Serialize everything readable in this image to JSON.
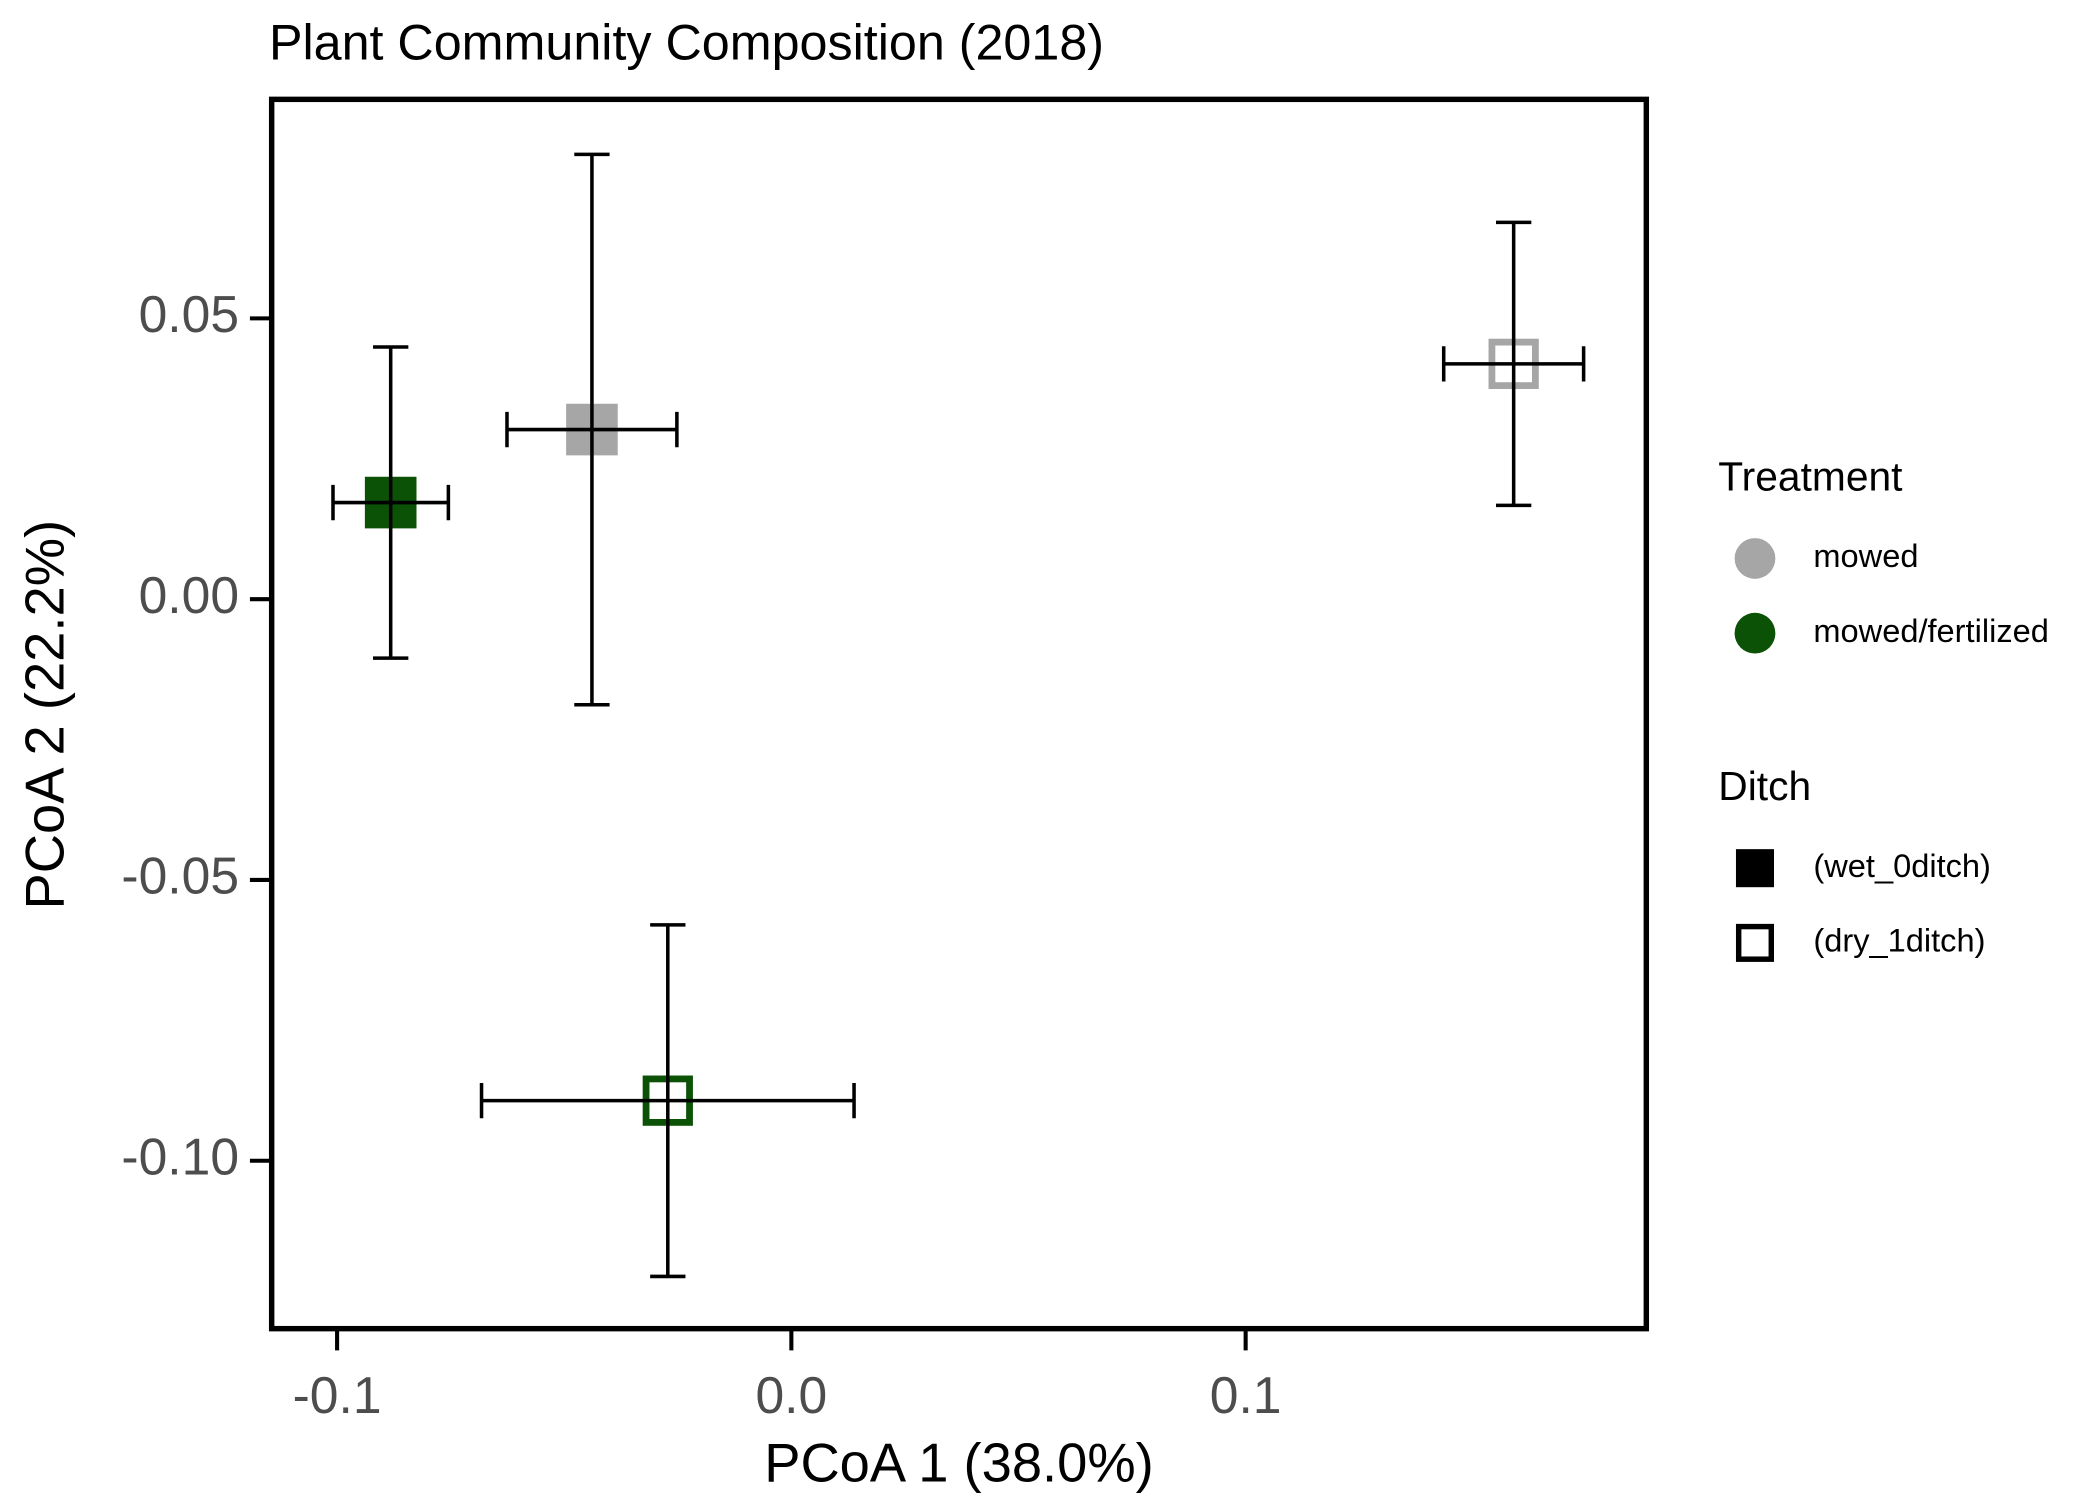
{
  "chart_data": {
    "type": "scatter",
    "title": "Plant Community Composition (2018)",
    "x_label": "PCoA 1 (38.0%)",
    "y_label": "PCoA 2 (22.2%)",
    "xlim": [
      -0.1144,
      0.1882
    ],
    "ylim": [
      -0.1299,
      0.089
    ],
    "xticks": [
      -0.1,
      {
        "value": 0,
        "label": "0.0"
      },
      0.1
    ],
    "yticks": [
      {
        "value": -0.1,
        "label": "-0.10"
      },
      -0.05,
      {
        "value": 0,
        "label": "0.00"
      },
      0.05
    ],
    "series": [
      {
        "color": "#a6a6a6",
        "filled": true,
        "x": [
          -0.0439
        ],
        "y": [
          0.0302
        ],
        "xerr": [
          0.0187
        ],
        "yerr": [
          0.049
        ]
      },
      {
        "color": "#0b5207",
        "filled": true,
        "x": [
          -0.0882
        ],
        "y": [
          0.0172
        ],
        "xerr": [
          0.0127
        ],
        "yerr": [
          0.0277
        ]
      },
      {
        "color": "#a6a6a6",
        "filled": false,
        "x": [
          0.159
        ],
        "y": [
          0.0419
        ],
        "xerr": [
          0.0154
        ],
        "yerr": [
          0.0252
        ]
      },
      {
        "color": "#0b5207",
        "filled": false,
        "x": [
          -0.0272
        ],
        "y": [
          -0.0893
        ],
        "xerr": [
          0.041
        ],
        "yerr": [
          0.0313
        ]
      }
    ],
    "legends": [
      {
        "title": "Treatment",
        "entries": [
          {
            "name": "mowed",
            "color": "#a6a6a6"
          },
          {
            "name": "mowed/fertilized",
            "color": "#0b5207"
          }
        ]
      },
      {
        "title": "Ditch",
        "entries": [
          {
            "name": "(wet_0ditch)",
            "filled": true
          },
          {
            "name": "(dry_1ditch)",
            "filled": false
          }
        ]
      }
    ]
  }
}
